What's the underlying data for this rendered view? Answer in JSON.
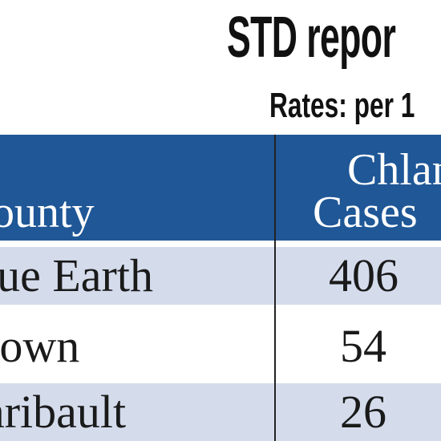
{
  "title": "STD repor",
  "subtitle": "Rates: per 1",
  "table": {
    "headers": {
      "county": "ounty",
      "chlamydia": "Chlan",
      "cases": "Cases"
    },
    "rows": [
      {
        "county": "lue Earth",
        "cases": "406"
      },
      {
        "county": "rown",
        "cases": "54"
      },
      {
        "county": "aribault",
        "cases": "26"
      }
    ]
  },
  "colors": {
    "header_blue": "#1f5797",
    "row_shade": "#d4dcec",
    "text": "#1a1a1a"
  }
}
